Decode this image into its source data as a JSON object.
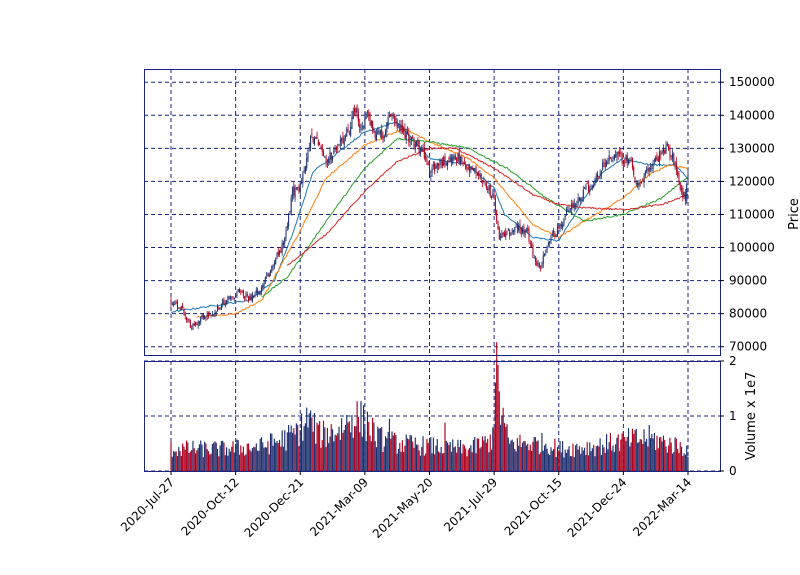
{
  "colors": {
    "frame": "#1a237e",
    "grid": "#1a237e",
    "up": "#1c2e6e",
    "down": "#b0001e",
    "ma1": "#1f77b4",
    "ma2": "#ff7f0e",
    "ma3": "#2ca02c",
    "ma4": "#d62728"
  },
  "chart_data": [
    {
      "type": "candlestick",
      "panel": "price",
      "title": "",
      "xlabel": "",
      "ylabel": "Price",
      "ylim": [
        67500,
        154000
      ],
      "y_ticks": [
        "70000",
        "80000",
        "90000",
        "100000",
        "110000",
        "120000",
        "130000",
        "140000",
        "150000"
      ],
      "x_ticks": [
        "2020-Jul-27",
        "2020-Oct-12",
        "2020-Dec-21",
        "2021-Mar-09",
        "2021-May-20",
        "2021-Jul-29",
        "2021-Oct-15",
        "2021-Dec-24",
        "2022-Mar-14"
      ],
      "x_tick_index": [
        0,
        50,
        100,
        150,
        200,
        250,
        300,
        350,
        400
      ],
      "grid": true,
      "grid_style": "dashed",
      "n_sessions": 401,
      "close_anchors": [
        [
          0,
          84000
        ],
        [
          8,
          81500
        ],
        [
          16,
          76000
        ],
        [
          24,
          79000
        ],
        [
          32,
          80000
        ],
        [
          40,
          83500
        ],
        [
          52,
          86500
        ],
        [
          60,
          84500
        ],
        [
          70,
          88000
        ],
        [
          78,
          94000
        ],
        [
          88,
          102000
        ],
        [
          94,
          117000
        ],
        [
          100,
          118000
        ],
        [
          104,
          124000
        ],
        [
          108,
          134000
        ],
        [
          114,
          131000
        ],
        [
          120,
          126000
        ],
        [
          128,
          130000
        ],
        [
          134,
          133000
        ],
        [
          138,
          136000
        ],
        [
          142,
          142000
        ],
        [
          146,
          136000
        ],
        [
          152,
          140000
        ],
        [
          158,
          134000
        ],
        [
          164,
          134000
        ],
        [
          170,
          141000
        ],
        [
          176,
          136000
        ],
        [
          182,
          134000
        ],
        [
          190,
          131000
        ],
        [
          196,
          128000
        ],
        [
          200,
          123000
        ],
        [
          206,
          125000
        ],
        [
          214,
          127000
        ],
        [
          222,
          127000
        ],
        [
          230,
          123000
        ],
        [
          236,
          123000
        ],
        [
          242,
          120000
        ],
        [
          246,
          118000
        ],
        [
          250,
          114000
        ],
        [
          254,
          103000
        ],
        [
          260,
          104000
        ],
        [
          268,
          106000
        ],
        [
          276,
          104000
        ],
        [
          282,
          96000
        ],
        [
          286,
          94000
        ],
        [
          290,
          100000
        ],
        [
          296,
          104000
        ],
        [
          302,
          107000
        ],
        [
          308,
          112000
        ],
        [
          314,
          114000
        ],
        [
          320,
          118000
        ],
        [
          326,
          119000
        ],
        [
          332,
          123000
        ],
        [
          338,
          127000
        ],
        [
          344,
          128000
        ],
        [
          350,
          127000
        ],
        [
          356,
          125000
        ],
        [
          360,
          118000
        ],
        [
          364,
          120000
        ],
        [
          370,
          124000
        ],
        [
          378,
          128000
        ],
        [
          384,
          130000
        ],
        [
          390,
          126000
        ],
        [
          394,
          118000
        ],
        [
          398,
          115000
        ],
        [
          400,
          123000
        ]
      ],
      "moving_averages": [
        {
          "window": 10,
          "points": [
            [
              0,
              80500
            ],
            [
              60,
              84000
            ],
            [
              80,
              90000
            ],
            [
              94,
              104000
            ],
            [
              110,
              123000
            ],
            [
              150,
              135000
            ],
            [
              175,
              138000
            ],
            [
              200,
              127000
            ],
            [
              230,
              125000
            ],
            [
              250,
              118000
            ],
            [
              258,
              110000
            ],
            [
              280,
              103000
            ],
            [
              300,
              102000
            ],
            [
              320,
              115000
            ],
            [
              335,
              123000
            ],
            [
              350,
              127000
            ],
            [
              370,
              125000
            ],
            [
              390,
              125000
            ],
            [
              400,
              121000
            ]
          ]
        },
        {
          "window": 20,
          "points": [
            [
              20,
              79000
            ],
            [
              50,
              80000
            ],
            [
              70,
              84000
            ],
            [
              100,
              105000
            ],
            [
              120,
              121000
            ],
            [
              150,
              131000
            ],
            [
              180,
              136000
            ],
            [
              200,
              132000
            ],
            [
              230,
              127000
            ],
            [
              250,
              121000
            ],
            [
              280,
              107000
            ],
            [
              300,
              103000
            ],
            [
              320,
              108000
            ],
            [
              350,
              115000
            ],
            [
              370,
              122000
            ],
            [
              385,
              125000
            ],
            [
              400,
              124000
            ]
          ]
        },
        {
          "window": 40,
          "points": [
            [
              70,
              85000
            ],
            [
              90,
              91000
            ],
            [
              120,
              108000
            ],
            [
              150,
              124000
            ],
            [
              175,
              133000
            ],
            [
              200,
              132000
            ],
            [
              230,
              130000
            ],
            [
              260,
              124000
            ],
            [
              290,
              115000
            ],
            [
              320,
              108000
            ],
            [
              350,
              110000
            ],
            [
              380,
              115000
            ],
            [
              395,
              120000
            ],
            [
              400,
              121000
            ]
          ]
        },
        {
          "window": 60,
          "points": [
            [
              90,
              94500
            ],
            [
              120,
              104000
            ],
            [
              150,
              117000
            ],
            [
              175,
              126000
            ],
            [
              200,
              130000
            ],
            [
              220,
              130000
            ],
            [
              250,
              124000
            ],
            [
              280,
              116000
            ],
            [
              300,
              113000
            ],
            [
              320,
              112000
            ],
            [
              350,
              111500
            ],
            [
              380,
              113000
            ],
            [
              400,
              116000
            ]
          ]
        }
      ]
    },
    {
      "type": "bar",
      "panel": "volume",
      "title": "",
      "xlabel": "",
      "ylabel": "Volume  x 1e7",
      "ylim": [
        0,
        2
      ],
      "y_ticks": [
        "0",
        "1",
        "2"
      ],
      "volume_profile": [
        [
          0,
          0.4
        ],
        [
          40,
          0.4
        ],
        [
          70,
          0.45
        ],
        [
          90,
          0.6
        ],
        [
          100,
          0.75
        ],
        [
          106,
          0.95
        ],
        [
          115,
          0.65
        ],
        [
          130,
          0.75
        ],
        [
          142,
          1.0
        ],
        [
          152,
          0.85
        ],
        [
          160,
          0.6
        ],
        [
          175,
          0.5
        ],
        [
          200,
          0.45
        ],
        [
          230,
          0.4
        ],
        [
          248,
          0.55
        ],
        [
          252,
          1.7
        ],
        [
          256,
          0.9
        ],
        [
          262,
          0.5
        ],
        [
          290,
          0.5
        ],
        [
          300,
          0.4
        ],
        [
          330,
          0.45
        ],
        [
          350,
          0.55
        ],
        [
          370,
          0.6
        ],
        [
          400,
          0.4
        ]
      ],
      "volume_spikes": [
        [
          253,
          1.93
        ],
        [
          257,
          1.15
        ],
        [
          108,
          1.1
        ],
        [
          152,
          1.08
        ],
        [
          169,
          0.95
        ],
        [
          212,
          0.88
        ]
      ]
    }
  ]
}
